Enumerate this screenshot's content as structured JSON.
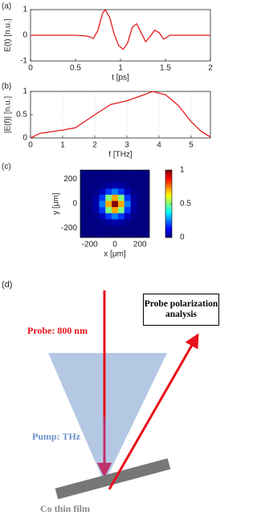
{
  "chart_data": [
    {
      "type": "line",
      "label": "(a)",
      "xlabel": "t [ps]",
      "ylabel": "E(t) [n.u.]",
      "color": "#e41a1c",
      "grid": false,
      "x": [
        0,
        0.5,
        0.6,
        0.65,
        0.7,
        0.75,
        0.8,
        0.83,
        0.88,
        0.93,
        0.98,
        1.03,
        1.08,
        1.13,
        1.18,
        1.23,
        1.28,
        1.33,
        1.38,
        1.43,
        1.48,
        1.55,
        2
      ],
      "values": [
        0,
        0,
        -0.02,
        -0.05,
        -0.12,
        0.2,
        0.85,
        1.0,
        0.7,
        0.05,
        -0.4,
        -0.55,
        -0.3,
        0.3,
        0.45,
        0.1,
        -0.25,
        -0.05,
        0.2,
        0.1,
        -0.15,
        0,
        0
      ],
      "xlim": [
        0,
        2
      ],
      "ylim": [
        -1,
        1
      ],
      "xticks": [
        0,
        0.5,
        1,
        1.5,
        2
      ],
      "yticks": [
        -1,
        0,
        1
      ]
    },
    {
      "type": "line",
      "label": "(b)",
      "xlabel": "f [THz]",
      "ylabel": "|E(f)| [n.u.]",
      "color": "#e41a1c",
      "grid": true,
      "x": [
        0,
        0.3,
        1,
        1.4,
        2,
        2.5,
        3,
        3.5,
        3.8,
        4.2,
        4.6,
        5,
        5.3,
        5.6
      ],
      "values": [
        0,
        0.1,
        0.17,
        0.22,
        0.5,
        0.72,
        0.8,
        0.92,
        1.0,
        0.93,
        0.7,
        0.35,
        0.15,
        0.02
      ],
      "xlim": [
        0,
        5.6
      ],
      "ylim": [
        0,
        1
      ],
      "xticks": [
        0,
        1,
        2,
        3,
        4,
        5
      ],
      "yticks": [
        0,
        0.5,
        1
      ]
    },
    {
      "type": "heatmap",
      "label": "(c)",
      "xlabel": "x [μm]",
      "ylabel": "y [μm]",
      "x": [
        -250,
        -200,
        -150,
        -100,
        -50,
        0,
        50,
        100,
        150,
        200,
        250
      ],
      "y": [
        -250,
        -200,
        -150,
        -100,
        -50,
        0,
        50,
        100,
        150,
        200,
        250
      ],
      "z": [
        [
          0,
          0,
          0,
          0,
          0,
          0,
          0,
          0,
          0,
          0,
          0
        ],
        [
          0,
          0,
          0,
          0,
          0,
          0,
          0,
          0,
          0,
          0,
          0
        ],
        [
          0,
          0,
          0,
          0.01,
          0.03,
          0.04,
          0.03,
          0.01,
          0,
          0,
          0
        ],
        [
          0,
          0,
          0.01,
          0.06,
          0.18,
          0.25,
          0.18,
          0.06,
          0.01,
          0,
          0
        ],
        [
          0,
          0,
          0.03,
          0.18,
          0.5,
          0.71,
          0.5,
          0.18,
          0.03,
          0,
          0
        ],
        [
          0,
          0,
          0.04,
          0.25,
          0.71,
          1,
          0.71,
          0.25,
          0.04,
          0,
          0
        ],
        [
          0,
          0,
          0.03,
          0.18,
          0.5,
          0.71,
          0.5,
          0.18,
          0.03,
          0,
          0
        ],
        [
          0,
          0,
          0.01,
          0.06,
          0.18,
          0.25,
          0.18,
          0.06,
          0.01,
          0,
          0
        ],
        [
          0,
          0,
          0,
          0.01,
          0.03,
          0.04,
          0.03,
          0.01,
          0,
          0,
          0
        ],
        [
          0,
          0,
          0,
          0,
          0,
          0,
          0,
          0,
          0,
          0,
          0
        ],
        [
          0,
          0,
          0,
          0,
          0,
          0,
          0,
          0,
          0,
          0,
          0
        ]
      ],
      "xlim": [
        -275,
        275
      ],
      "ylim": [
        -275,
        275
      ],
      "xticks": [
        -200,
        0,
        200
      ],
      "yticks": [
        -200,
        0,
        200
      ],
      "clim": [
        0,
        1
      ],
      "cticks": [
        0,
        0.5,
        1
      ]
    }
  ],
  "diagram": {
    "label": "(d)",
    "probe": "Probe: 800 nm",
    "analysis": "Probe polarization analysis",
    "pump": "Pump: THz",
    "film": "Co thin film"
  }
}
